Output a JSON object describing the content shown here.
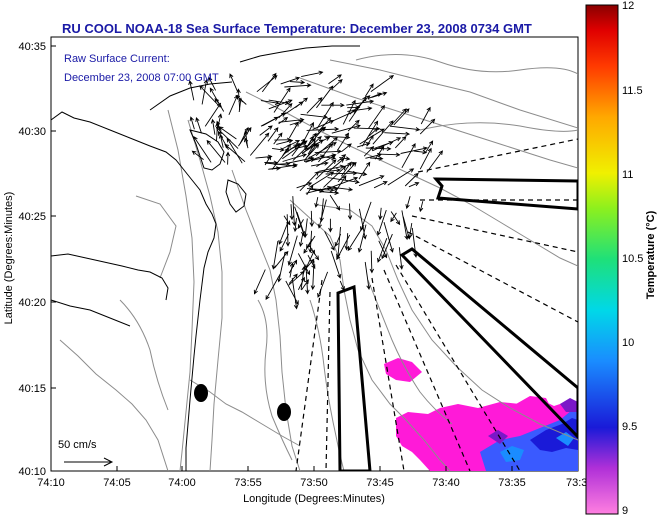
{
  "figure": {
    "title": "RU COOL  NOAA-18  Sea Surface Temperature:  December 23, 2008 0734 GMT",
    "current_note_line1": "Raw Surface Current:",
    "current_note_line2": "December 23, 2008 07:00 GMT",
    "scale_label": "50 cm/s",
    "xlabel": "Longitude (Degrees:Minutes)",
    "ylabel": "Latitude (Degrees:Minutes)",
    "x_ticks": [
      "74:10",
      "74:05",
      "74:00",
      "73:55",
      "73:50",
      "73:45",
      "73:40",
      "73:35",
      "73:3"
    ],
    "y_ticks": [
      "40:35",
      "40:30",
      "40:25",
      "40:20",
      "40:15",
      "40:10"
    ]
  },
  "colorbar": {
    "label": "Temperature (°C)",
    "ticks": [
      "12",
      "11.5",
      "11",
      "10.5",
      "10",
      "9.5",
      "9"
    ],
    "min": 9,
    "max": 12,
    "colors": [
      "#ff7fe0",
      "#7a18c8",
      "#1a1ad8",
      "#1a8cff",
      "#00d8e8",
      "#1ee07a",
      "#8cf01e",
      "#f0f000",
      "#ffa800",
      "#ff3a00",
      "#e00000",
      "#8a0000"
    ]
  },
  "map_colors": {
    "coast": "#000000",
    "bathymetry": "#8c8c8c",
    "vectors": "#000000",
    "sst_cold": "#ff1ad8",
    "sst_warm": "#3a5aff"
  }
}
